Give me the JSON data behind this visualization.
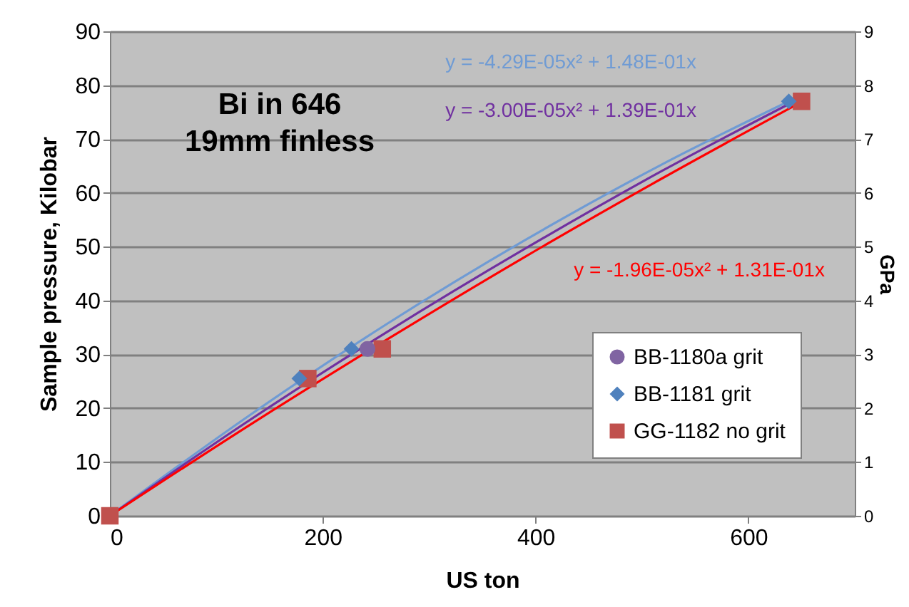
{
  "chart_data": {
    "type": "scatter",
    "xlabel": "US ton",
    "ylabel": "Sample pressure, Kilobar",
    "y2label": "GPa",
    "xlim": [
      0,
      700
    ],
    "xticks": [
      0,
      200,
      400,
      600
    ],
    "ylim": [
      0,
      90
    ],
    "yticks": [
      0,
      10,
      20,
      30,
      40,
      50,
      60,
      70,
      80,
      90
    ],
    "y2lim": [
      0,
      9
    ],
    "y2ticks": [
      0,
      1,
      2,
      3,
      4,
      5,
      6,
      7,
      8,
      9
    ],
    "grid": "y",
    "legend": "bottom right",
    "annotations": [
      "Bi in 646",
      "19mm finless",
      "y = -4.29E-05x² + 1.48E-01x",
      "y = -3.00E-05x² + 1.39E-01x",
      "y = -1.96E-05x² + 1.31E-01x"
    ],
    "series": [
      {
        "type": "line",
        "color": "#6f9bd4",
        "x": [
          0,
          130,
          260,
          390,
          520,
          640
        ],
        "values": [
          0,
          18.5,
          35.6,
          51.2,
          65.4,
          77.2
        ]
      },
      {
        "type": "line",
        "color": "#7030a0",
        "x": [
          0,
          130,
          260,
          390,
          520,
          645
        ],
        "values": [
          0,
          17.6,
          34.1,
          49.6,
          64.2,
          77.2
        ]
      },
      {
        "type": "line",
        "color": "#ff0000",
        "x": [
          0,
          130,
          260,
          390,
          520,
          652
        ],
        "values": [
          0,
          16.7,
          32.7,
          48.1,
          62.8,
          77.1
        ]
      },
      {
        "name": "BB-1180a grit",
        "color": "#8064a2",
        "marker": "circle",
        "x": [
          242
        ],
        "values": [
          31
        ]
      },
      {
        "name": "BB-1181 grit",
        "color": "#4f81bd",
        "marker": "diamond",
        "x": [
          178,
          227,
          638
        ],
        "values": [
          25.5,
          31,
          77
        ]
      },
      {
        "name": "GG-1182 no grit",
        "color": "#c0504d",
        "marker": "square",
        "x": [
          0,
          186,
          256,
          650
        ],
        "values": [
          0,
          25.5,
          31,
          77
        ]
      }
    ]
  }
}
